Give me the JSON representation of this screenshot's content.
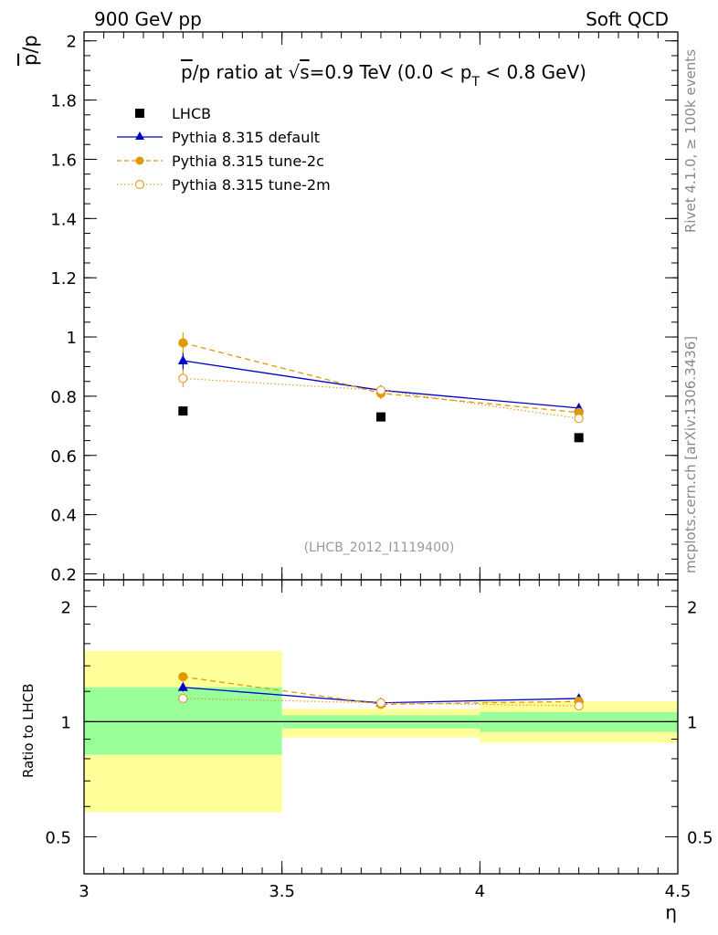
{
  "header": {
    "left": "900 GeV pp",
    "right": "Soft QCD"
  },
  "side_labels": {
    "rivet": "Rivet 4.1.0, ≥ 100k events",
    "mcplots": "mcplots.cern.ch [arXiv:1306.3436]"
  },
  "chart_data": {
    "type": "scatter",
    "title": "p̄/p ratio at √s=0.9 TeV (0.0 < pT < 0.8 GeV)",
    "title_parts": {
      "prefix_bar": "p",
      "prefix_rest": "/p ratio at ",
      "sqrt_symbol": "√",
      "s": "s",
      "mid": "=0.9 TeV (0.0 < p",
      "sub": "T",
      "suffix": " < 0.8 GeV)"
    },
    "analysis_id": "(LHCB_2012_I1119400)",
    "ylabel_bar": "p",
    "ylabel_rest": "/p",
    "xlabel": "η",
    "ratio_ylabel": "Ratio to LHCB",
    "xlim": [
      3.0,
      4.5
    ],
    "ylim": [
      0.18,
      2.03
    ],
    "ratio_ylim": [
      0.4,
      2.35
    ],
    "x_ticks": [
      "3",
      "3.5",
      "4",
      "4.5"
    ],
    "x_tick_values": [
      3.0,
      3.5,
      4.0,
      4.5
    ],
    "y_ticks": [
      "0.2",
      "0.4",
      "0.6",
      "0.8",
      "1",
      "1.2",
      "1.4",
      "1.6",
      "1.8",
      "2"
    ],
    "y_tick_values": [
      0.2,
      0.4,
      0.6,
      0.8,
      1.0,
      1.2,
      1.4,
      1.6,
      1.8,
      2.0
    ],
    "ratio_ticks": [
      "0.5",
      "1",
      "2"
    ],
    "ratio_tick_values": [
      0.5,
      1.0,
      2.0
    ],
    "legend": [
      {
        "label": "LHCB",
        "series": "data"
      },
      {
        "label": "Pythia 8.315 default",
        "series": "default"
      },
      {
        "label": "Pythia 8.315 tune-2c",
        "series": "tune2c"
      },
      {
        "label": "Pythia 8.315 tune-2m",
        "series": "tune2m"
      }
    ],
    "bins": [
      [
        3.0,
        3.5
      ],
      [
        3.5,
        4.0
      ],
      [
        4.0,
        4.5
      ]
    ],
    "data": {
      "name": "LHCB",
      "x": [
        3.25,
        3.75,
        4.25
      ],
      "y": [
        0.75,
        0.73,
        0.66
      ]
    },
    "series": [
      {
        "key": "default",
        "name": "Pythia 8.315 default",
        "color": "#0000cc",
        "x": [
          3.25,
          3.75,
          4.25
        ],
        "y": [
          0.92,
          0.82,
          0.76
        ],
        "err": [
          0.03,
          0.015,
          0.015
        ]
      },
      {
        "key": "tune2c",
        "name": "Pythia 8.315 tune-2c",
        "color": "#e09a00",
        "x": [
          3.25,
          3.75,
          4.25
        ],
        "y": [
          0.98,
          0.81,
          0.745
        ],
        "err": [
          0.035,
          0.02,
          0.015
        ]
      },
      {
        "key": "tune2m",
        "name": "Pythia 8.315 tune-2m",
        "color": "#e8a030",
        "x": [
          3.25,
          3.75,
          4.25
        ],
        "y": [
          0.86,
          0.82,
          0.725
        ],
        "err": [
          0.03,
          0.015,
          0.015
        ]
      }
    ],
    "ratio_series": [
      {
        "key": "default",
        "y": [
          1.23,
          1.12,
          1.15
        ],
        "err": [
          0.03,
          0.02,
          0.02
        ]
      },
      {
        "key": "tune2c",
        "y": [
          1.31,
          1.11,
          1.13
        ],
        "err": [
          0.035,
          0.025,
          0.025
        ]
      },
      {
        "key": "tune2m",
        "y": [
          1.15,
          1.12,
          1.1
        ],
        "err": [
          0.03,
          0.02,
          0.02
        ]
      }
    ],
    "bands": {
      "yellow": [
        [
          0.58,
          1.53
        ],
        [
          0.91,
          1.08
        ],
        [
          0.88,
          1.13
        ]
      ],
      "green": [
        [
          0.82,
          1.23
        ],
        [
          0.96,
          1.04
        ],
        [
          0.94,
          1.06
        ]
      ],
      "yellow_color": "#ffff99",
      "green_color": "#99ff99"
    }
  }
}
